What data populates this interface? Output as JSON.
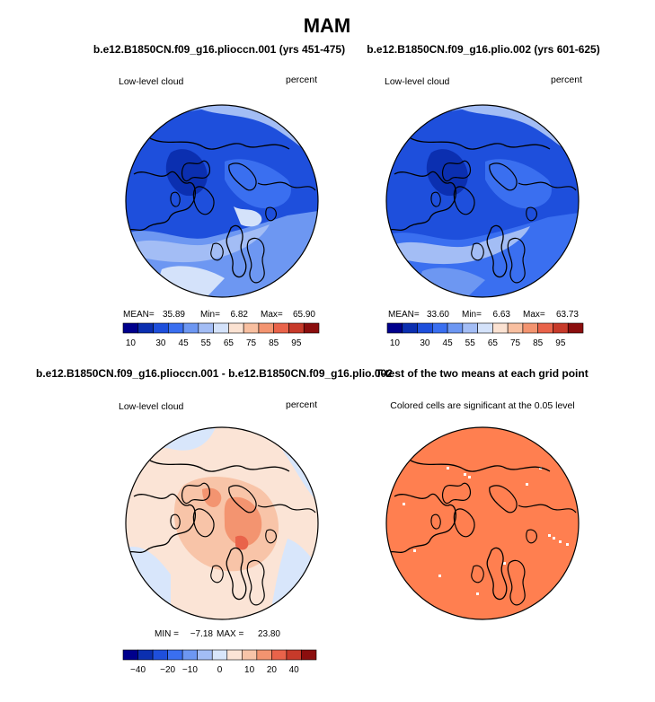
{
  "chart_data": {
    "type": "polar-map-panels",
    "title": "MAM",
    "panels": [
      {
        "id": "case1",
        "title": "b.e12.B1850CN.f09_g16.plioccn.001 (yrs 451-475)",
        "left_label": "Low-level cloud",
        "right_label": "percent",
        "stats": {
          "mean_label": "MEAN=",
          "mean": "35.89",
          "min_label": "Min=",
          "min": "6.82",
          "max_label": "Max=",
          "max": "65.90"
        },
        "colorbar": {
          "ticks": [
            "10",
            "30",
            "45",
            "55",
            "65",
            "75",
            "85",
            "95"
          ],
          "colors": [
            "#00008c",
            "#0b2fb0",
            "#1e4fdc",
            "#3a6ff0",
            "#6d97f2",
            "#a3bdf5",
            "#d4e2fa",
            "#fbe2d2",
            "#f8bfa0",
            "#f39470",
            "#e9634a",
            "#c73a2a",
            "#8b0e0e"
          ]
        }
      },
      {
        "id": "case2",
        "title": "b.e12.B1850CN.f09_g16.plio.002 (yrs 601-625)",
        "left_label": "Low-level cloud",
        "right_label": "percent",
        "stats": {
          "mean_label": "MEAN=",
          "mean": "33.60",
          "min_label": "Min=",
          "min": "6.63",
          "max_label": "Max=",
          "max": "63.73"
        },
        "colorbar": {
          "ticks": [
            "10",
            "30",
            "45",
            "55",
            "65",
            "75",
            "85",
            "95"
          ],
          "colors": [
            "#00008c",
            "#0b2fb0",
            "#1e4fdc",
            "#3a6ff0",
            "#6d97f2",
            "#a3bdf5",
            "#d4e2fa",
            "#fbe2d2",
            "#f8bfa0",
            "#f39470",
            "#e9634a",
            "#c73a2a",
            "#8b0e0e"
          ]
        }
      },
      {
        "id": "diff",
        "title": "b.e12.B1850CN.f09_g16.plioccn.001 - b.e12.B1850CN.f09_g16.plio.002",
        "left_label": "Low-level cloud",
        "right_label": "percent",
        "stats": {
          "min_label": "MIN =",
          "min": "−7.18",
          "max_label": "MAX =",
          "max": "23.80"
        },
        "colorbar": {
          "ticks": [
            "−40",
            "−20",
            "−10",
            "0",
            "10",
            "20",
            "40"
          ],
          "colors": [
            "#00008c",
            "#0b2fb0",
            "#1e4fdc",
            "#3a6ff0",
            "#6d97f2",
            "#a3bdf5",
            "#d8e6fb",
            "#fbe4d6",
            "#f8c4a8",
            "#f39470",
            "#e9634a",
            "#c73a2a",
            "#8b0e0e"
          ]
        }
      },
      {
        "id": "ttest",
        "title": "T-test of the two means at each grid point",
        "subtitle": "Colored cells are significant at the 0.05 level",
        "fill_color": "#ff7f50"
      }
    ]
  }
}
